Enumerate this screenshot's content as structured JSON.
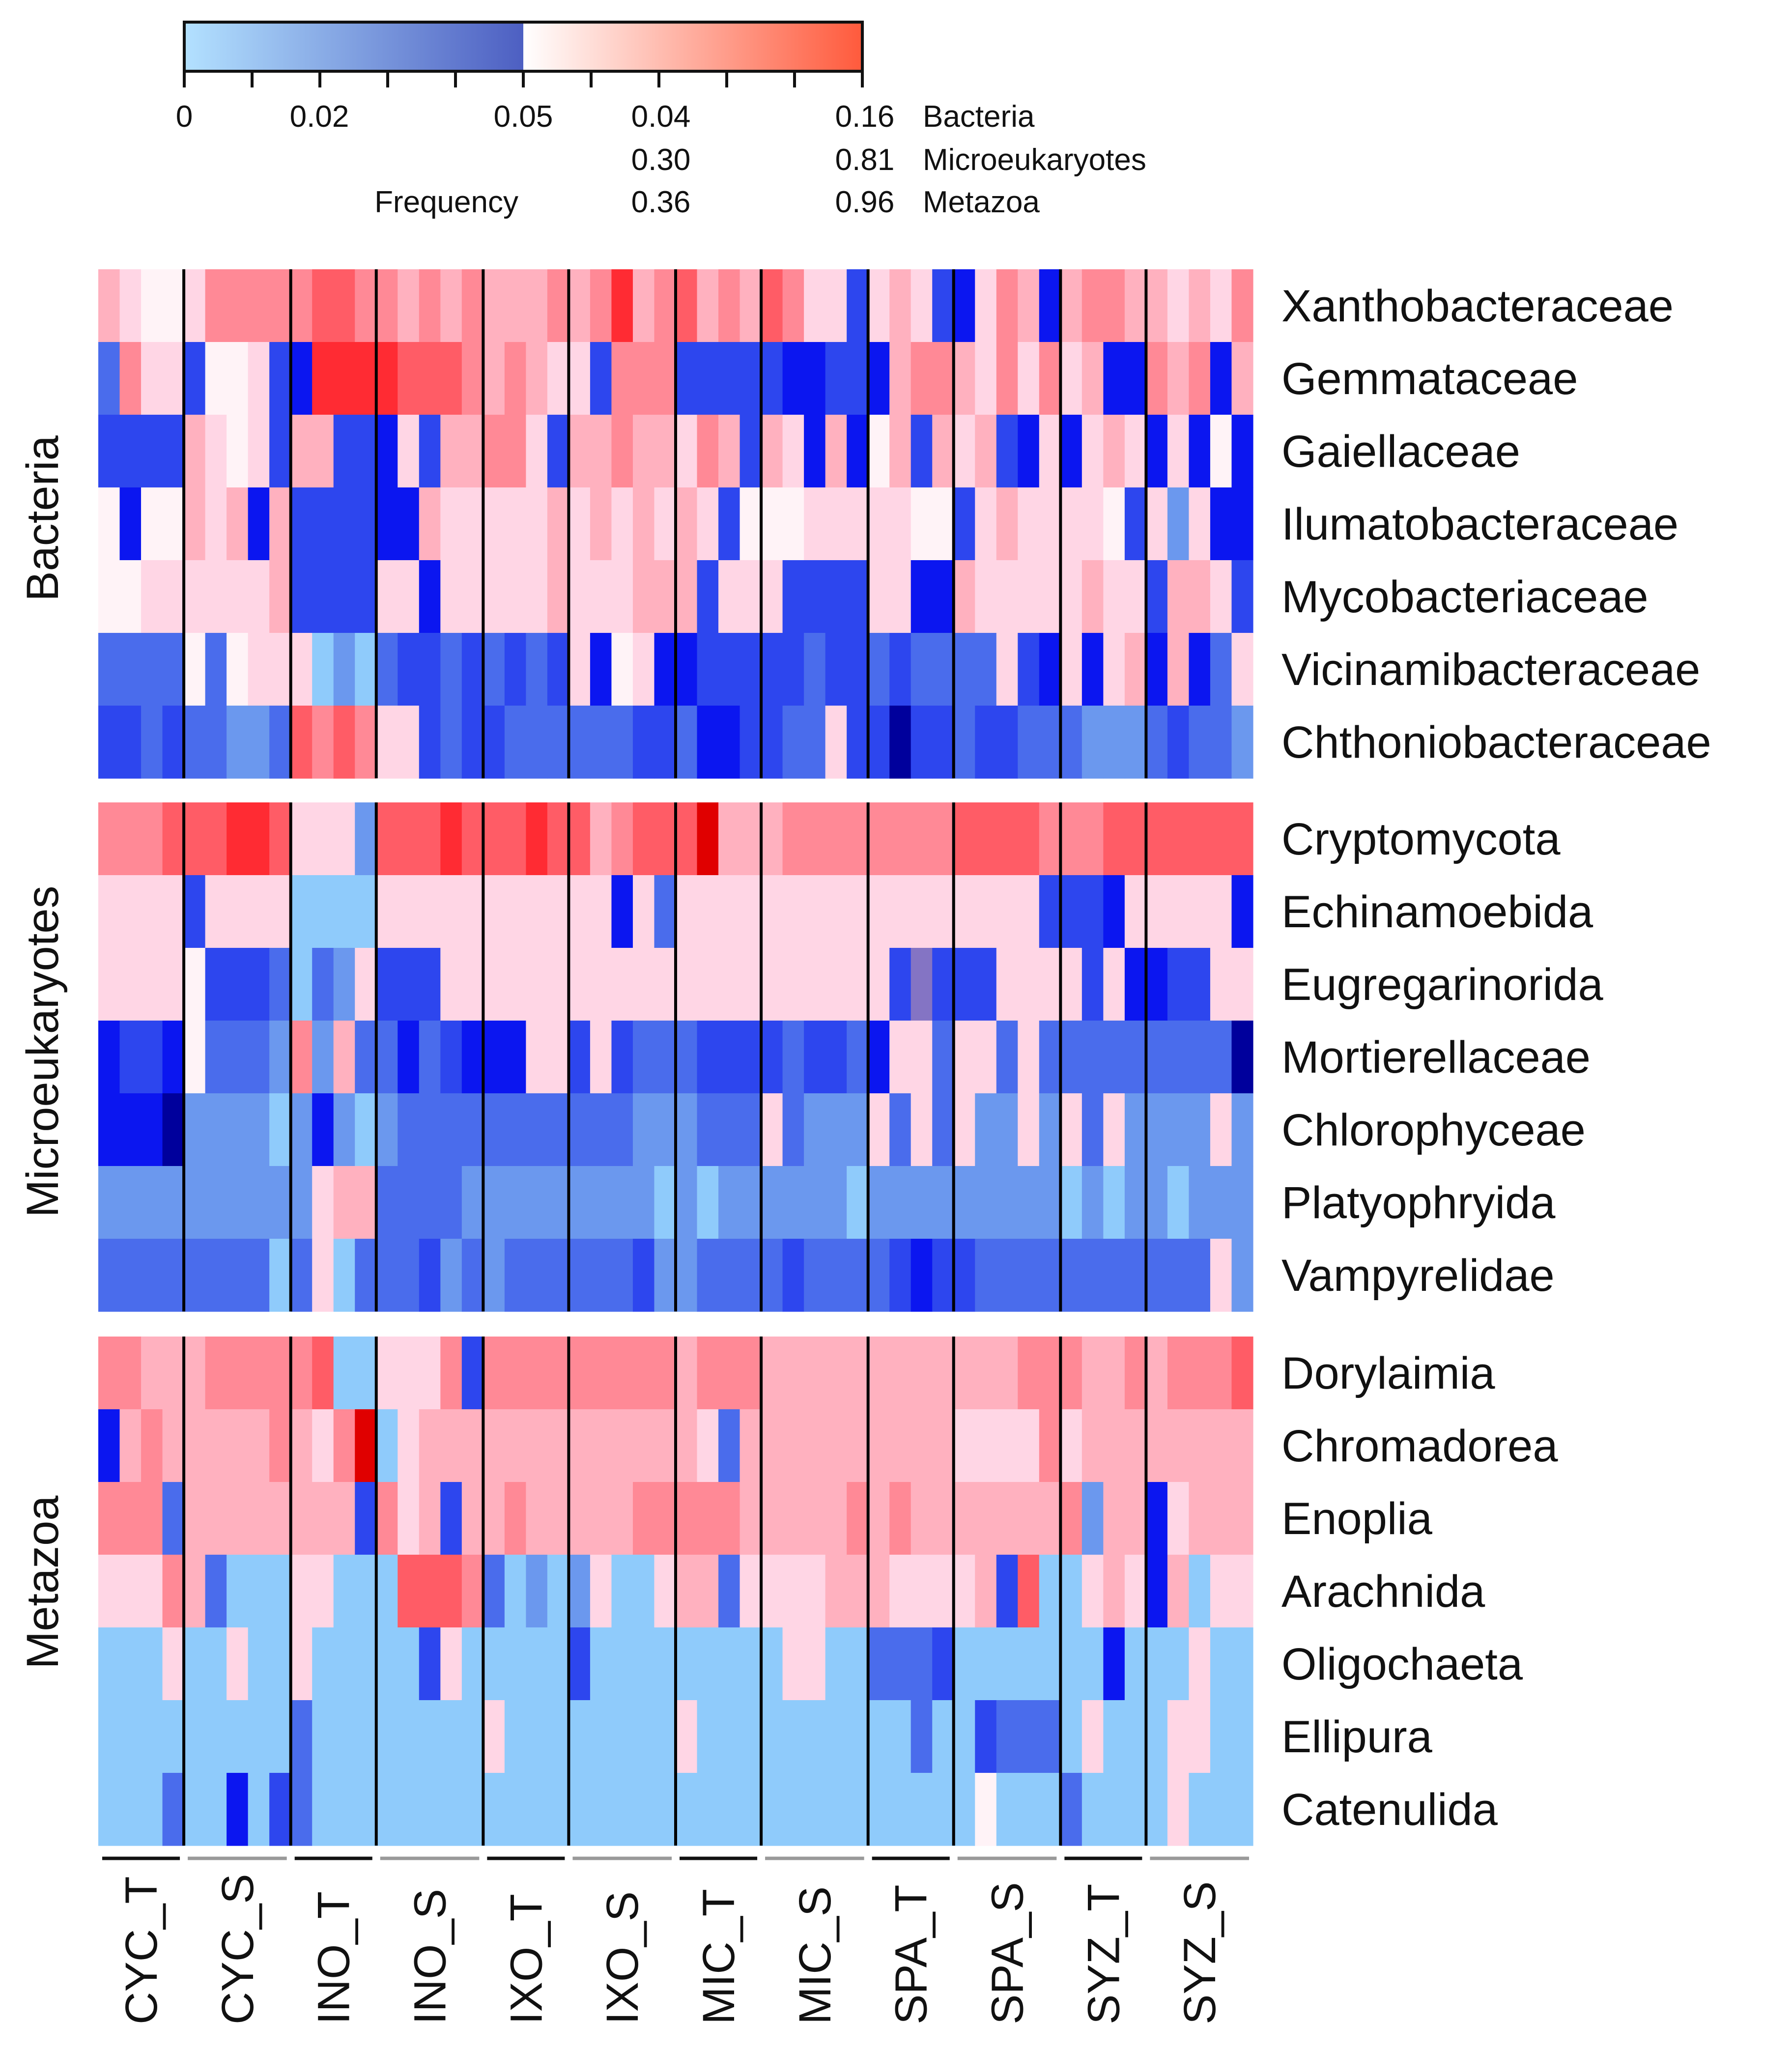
{
  "chart_data": {
    "type": "heatmap",
    "title": "",
    "colorbar": {
      "label": "Frequency",
      "zero_label": "0",
      "blue_mid_label": "0.02",
      "blue_max_label": "0.05",
      "blue_colors": [
        "#b3e1ff",
        "#4d5fc2"
      ],
      "red_colors": [
        "#ffffff",
        "#ff5a3c"
      ],
      "scales": [
        {
          "group": "Bacteria",
          "mid": "0.04",
          "max": "0.16"
        },
        {
          "group": "Microeukaryotes",
          "mid": "0.30",
          "max": "0.81"
        },
        {
          "group": "Metazoa",
          "mid": "0.36",
          "max": "0.96"
        }
      ]
    },
    "color_key": {
      "2": "#cfe8ff",
      "3": "#8fcbfb",
      "4": "#6b98ee",
      "5": "#4a6cec",
      "6": "#2d46ee",
      "7": "#0b16f0",
      "8": "#00009c",
      "P": "#8474c4",
      "a": "#fff3f7",
      "b": "#ffd6e5",
      "c": "#ffb1bf",
      "d": "#ff8996",
      "e": "#ff5c66",
      "f": "#ff2b33",
      "g": "#e00000"
    },
    "column_groups": [
      {
        "label": "CYC_T",
        "n": 4,
        "bracket": "#111111"
      },
      {
        "label": "CYC_S",
        "n": 5,
        "bracket": "#999999"
      },
      {
        "label": "INO_T",
        "n": 4,
        "bracket": "#111111"
      },
      {
        "label": "INO_S",
        "n": 5,
        "bracket": "#999999"
      },
      {
        "label": "IXO_T",
        "n": 4,
        "bracket": "#111111"
      },
      {
        "label": "IXO_S",
        "n": 5,
        "bracket": "#999999"
      },
      {
        "label": "MIC_T",
        "n": 4,
        "bracket": "#111111"
      },
      {
        "label": "MIC_S",
        "n": 5,
        "bracket": "#999999"
      },
      {
        "label": "SPA_T",
        "n": 4,
        "bracket": "#111111"
      },
      {
        "label": "SPA_S",
        "n": 5,
        "bracket": "#999999"
      },
      {
        "label": "SYZ_T",
        "n": 4,
        "bracket": "#111111"
      },
      {
        "label": "SYZ_S",
        "n": 5,
        "bracket": "#999999"
      }
    ],
    "panels": [
      {
        "group": "Bacteria",
        "rows": [
          {
            "label": "Xanthobacteraceae",
            "cells": "cbaabdddddeeddcdcdcccdcdfcdecdcedbb6bcb67bdc7cddccbcbde"
          },
          {
            "label": "Gemmataceae",
            "cells": "5dbb6aab67ffffeeedcdcbb6ddd6666677667cddcbdbdbc77dcd7cdcdebcbaaac7"
          },
          {
            "label": "Gaiellaceae",
            "cells": "6666cbab6cc667b6ccddb6ccdccbdc6cb7c7ac6cbc67b7bcb7b7a7c6c"
          },
          {
            "label": "Ilumatobacteraceae",
            "cells": "a7aacbc7c666677cbbbbbcbcbcbcb6aaabbbbbaa6bcbbbba6b4b77bcaaa777a77"
          },
          {
            "label": "Mycobacteriaceae",
            "cells": "aabbbbbbc6666bb7bbbbbcbbbccc6bbb6666bb77cbbbbbcbb6ccb6b6bb67bb7b7"
          },
          {
            "label": "Vicinamibacteraceae",
            "cells": "5555a5abbb343566565656b7ab7766666566565555b67b7bc7c75b555b5bbb6666"
          },
          {
            "label": "Chthoniobacteraceae",
            "cells": "665655445ededbb6566555555665776655b668665665554445655466576"
          }
        ]
      },
      {
        "group": "Microeukaryotes",
        "rows": [
          {
            "label": "Cryptomycota",
            "cells": "dddeeeffebbb4eeefeeefeecdeeegcccddddddddeeeedddeeeeeeeffeedeeeee"
          },
          {
            "label": "Echinamoebida",
            "cells": "bbbb6bbbb3333bbbbbbbbbbb7b5bbbbbbbbbbbbbbbbb6667bbbbb7bbbbbbbbbb6"
          },
          {
            "label": "Eugregarinorida",
            "cells": "bbbba6665354b666bbbbbbbbbbbbbbbbbbbbb6P666bbbb6b7766bbbbbbbbbbbb5"
          },
          {
            "label": "Mortierellaceae",
            "cells": "7667a5554d4c55756777bb6b6555666656657bb5bb5b5555555558666"
          },
          {
            "label": "Chlorophyceae",
            "cells": "7778444434743455555555555444555b5444b5b5b44b4b5b4444b4445444444"
          },
          {
            "label": "Platyophryida",
            "cells": "4444444444bcc5555444444444343444444344444444434344344444445"
          },
          {
            "label": "Vampyrelidae",
            "cells": "5555555535b35556454555555644555565555676655555555555b45555555556"
          }
        ]
      },
      {
        "group": "Metazoa",
        "rows": [
          {
            "label": "Dorylaimia",
            "cells": "ddcccddddde33bbbd6dddddddddcdddccccccccccccdddccdcdddeedddddddde6"
          },
          {
            "label": "Chromadorea",
            "cells": "7cdcccccdcbdg3bcccccccccccccb5ccccccccccbbbbdbccccccccccbcccccccc5"
          },
          {
            "label": "Enoplia",
            "cells": "ddd5cccccccc6dbc6ccdcccccdddddcccccdcdcccccccd4cc7bcccccbbc3bbcccc3"
          },
          {
            "label": "Arachnida",
            "cells": "bbbdc5333bb333eeed53434b33bcc5bbbbcccbbbbc6e33bcb7c3bbcb7bc3bbdf"
          },
          {
            "label": "Oligochaeta",
            "cells": "333b33b33b333336b333336333333333bb33555633333337333b333333e3633"
          },
          {
            "label": "Ellipura",
            "cells": "333333333533333333b33333333b333333333353365553b333bb3333333333"
          },
          {
            "label": "Catenulida",
            "cells": "33353373653333333333333333333333333333333a33353333b33333333"
          }
        ]
      }
    ]
  }
}
